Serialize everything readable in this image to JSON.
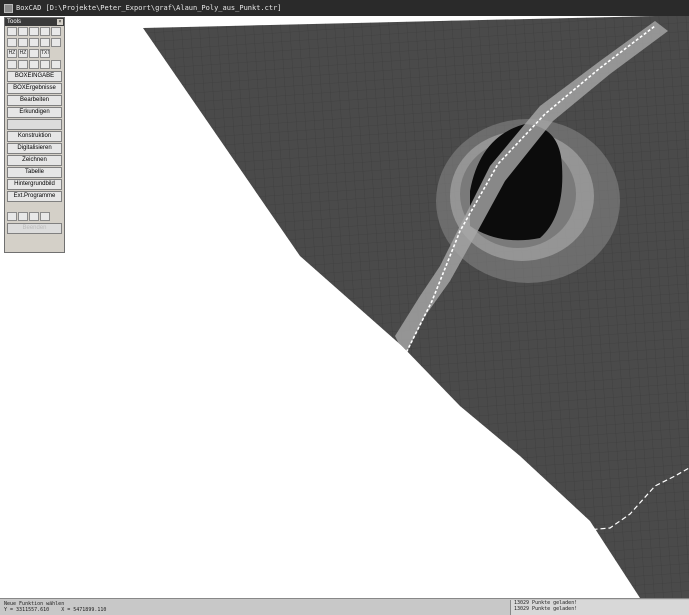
{
  "window": {
    "title": "BoxCAD [D:\\Projekte\\Peter_Export\\graf\\Alaun_Poly_aus_Punkt.ctr]"
  },
  "toolbox": {
    "title": "Tools",
    "close_glyph": "×",
    "icon_rows": [
      [
        "new-icon",
        "open-icon",
        "copy-icon",
        "save-icon",
        "print-icon"
      ],
      [
        "zoom-in-icon",
        "zoom-out-icon",
        "zoom-all-icon",
        "window-icon",
        "line-icon"
      ],
      [
        "height-text-icon",
        "height-icon",
        "layer-icon",
        "text-icon"
      ],
      [
        "grid-icon",
        "polyline-icon",
        "mesh-icon",
        "mesh-edit-icon",
        "delete-icon"
      ]
    ],
    "icon_labels": {
      "height-text-icon": "HZ",
      "height-icon": "HZ",
      "text-icon": "TXT"
    },
    "buttons": [
      {
        "label": "BOXEINGABE",
        "enabled": true
      },
      {
        "label": "BOXErgebnisse",
        "enabled": true
      },
      {
        "label": "Bearbeiten",
        "enabled": true
      },
      {
        "label": "Erkundigen",
        "enabled": true
      },
      {
        "label": "",
        "enabled": false
      },
      {
        "label": "Konstruktion",
        "enabled": true
      },
      {
        "label": "Digitalisieren",
        "enabled": true
      },
      {
        "label": "Zeichnen",
        "enabled": true
      },
      {
        "label": "Tabelle",
        "enabled": true
      },
      {
        "label": "Hintergrundbild",
        "enabled": true
      },
      {
        "label": "Ext.Programme",
        "enabled": true
      }
    ],
    "bottom_icons": [
      "help-icon",
      "layers-icon",
      "printer-icon",
      "settings-icon"
    ],
    "exit_label": "Beenden"
  },
  "status": {
    "prompt": "Neue Funktion wählen",
    "x_label": "Y =",
    "x_value": "3311557.610",
    "y_label": "X =",
    "y_value": "5471899.110",
    "log": [
      "13029 Punkte geladen!",
      "13029 Punkte geladen!"
    ]
  },
  "colors": {
    "mesh_fill": "#4a4a4a",
    "mesh_line": "#383838",
    "background": "#ffffff",
    "titlebar": "#2a2a2a",
    "panel": "#d4d0c8"
  }
}
